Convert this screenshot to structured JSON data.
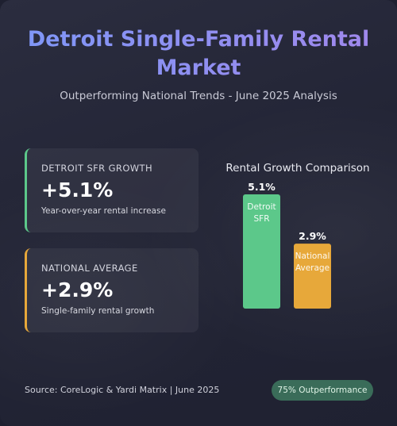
{
  "header": {
    "title": "Detroit Single-Family Rental Market",
    "subtitle": "Outperforming National Trends - June 2025 Analysis"
  },
  "stats": [
    {
      "label": "DETROIT SFR GROWTH",
      "value": "+5.1%",
      "description": "Year-over-year rental increase",
      "accent_color": "#5cc88a"
    },
    {
      "label": "NATIONAL AVERAGE",
      "value": "+2.9%",
      "description": "Single-family rental growth",
      "accent_color": "#e7a83a"
    }
  ],
  "chart_data": {
    "type": "bar",
    "title": "Rental Growth Comparison",
    "categories": [
      "Detroit SFR",
      "National Average"
    ],
    "category_lines": [
      [
        "Detroit",
        "SFR"
      ],
      [
        "National",
        "Average"
      ]
    ],
    "values": [
      5.1,
      2.9
    ],
    "value_labels": [
      "5.1%",
      "2.9%"
    ],
    "colors": [
      "#5cc88a",
      "#e7a83a"
    ],
    "ylim": [
      0,
      5.1
    ],
    "grid": false,
    "legend": "none"
  },
  "footer": {
    "source": "Source: CoreLogic & Yardi Matrix | June 2025",
    "badge": "75% Outperformance"
  },
  "colors": {
    "title_gradient_start": "#7f97f7",
    "title_gradient_end": "#a088ec",
    "background": "#252738",
    "positive": "#5cc88a",
    "national": "#e7a83a"
  }
}
